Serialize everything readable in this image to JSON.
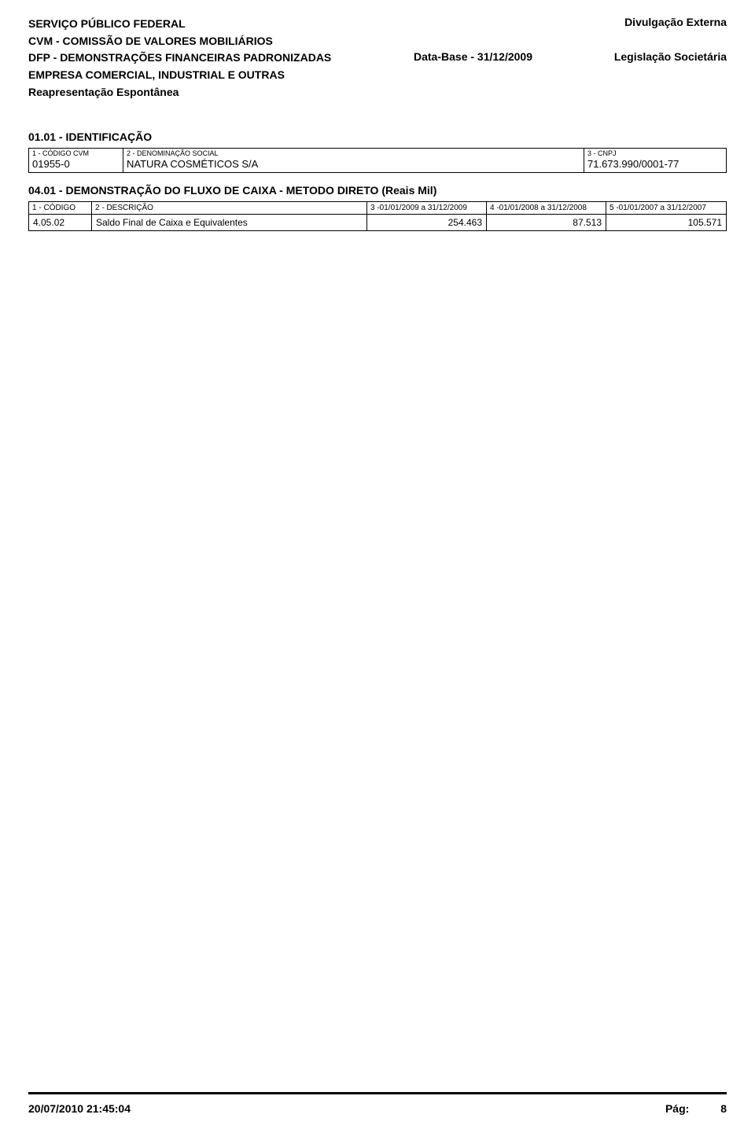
{
  "header": {
    "line1": "SERVIÇO PÚBLICO FEDERAL",
    "line2": "CVM - COMISSÃO DE VALORES MOBILIÁRIOS",
    "line3": "DFP - DEMONSTRAÇÕES FINANCEIRAS PADRONIZADAS",
    "line4": "EMPRESA COMERCIAL, INDUSTRIAL E OUTRAS",
    "line5": "Reapresentação Espontânea",
    "right_top": "Divulgação Externa",
    "data_base": "Data-Base - 31/12/2009",
    "legis": "Legislação Societária"
  },
  "section_id": {
    "title": "01.01 - IDENTIFICAÇÃO",
    "labels": {
      "c1": "1 - CÓDIGO CVM",
      "c2": "2 - DENOMINAÇÃO SOCIAL",
      "c3": "3 - CNPJ"
    },
    "values": {
      "c1": "01955-0",
      "c2": "NATURA COSMÉTICOS S/A",
      "c3": "71.673.990/0001-77"
    }
  },
  "section_data": {
    "title": "04.01 - DEMONSTRAÇÃO DO FLUXO DE CAIXA - METODO DIRETO (Reais Mil)",
    "headers": {
      "c1": "1 - CÓDIGO",
      "c2": "2 - DESCRIÇÃO",
      "c3": "3 -01/01/2009 a 31/12/2009",
      "c4": "4 -01/01/2008 a 31/12/2008",
      "c5": "5 -01/01/2007 a 31/12/2007"
    },
    "row": {
      "c1": "4.05.02",
      "c2": "Saldo Final de Caixa e Equivalentes",
      "c3": "254.463",
      "c4": "87.513",
      "c5": "105.571"
    }
  },
  "footer": {
    "timestamp": "20/07/2010 21:45:04",
    "page_label": "Pág:",
    "page_num": "8"
  }
}
